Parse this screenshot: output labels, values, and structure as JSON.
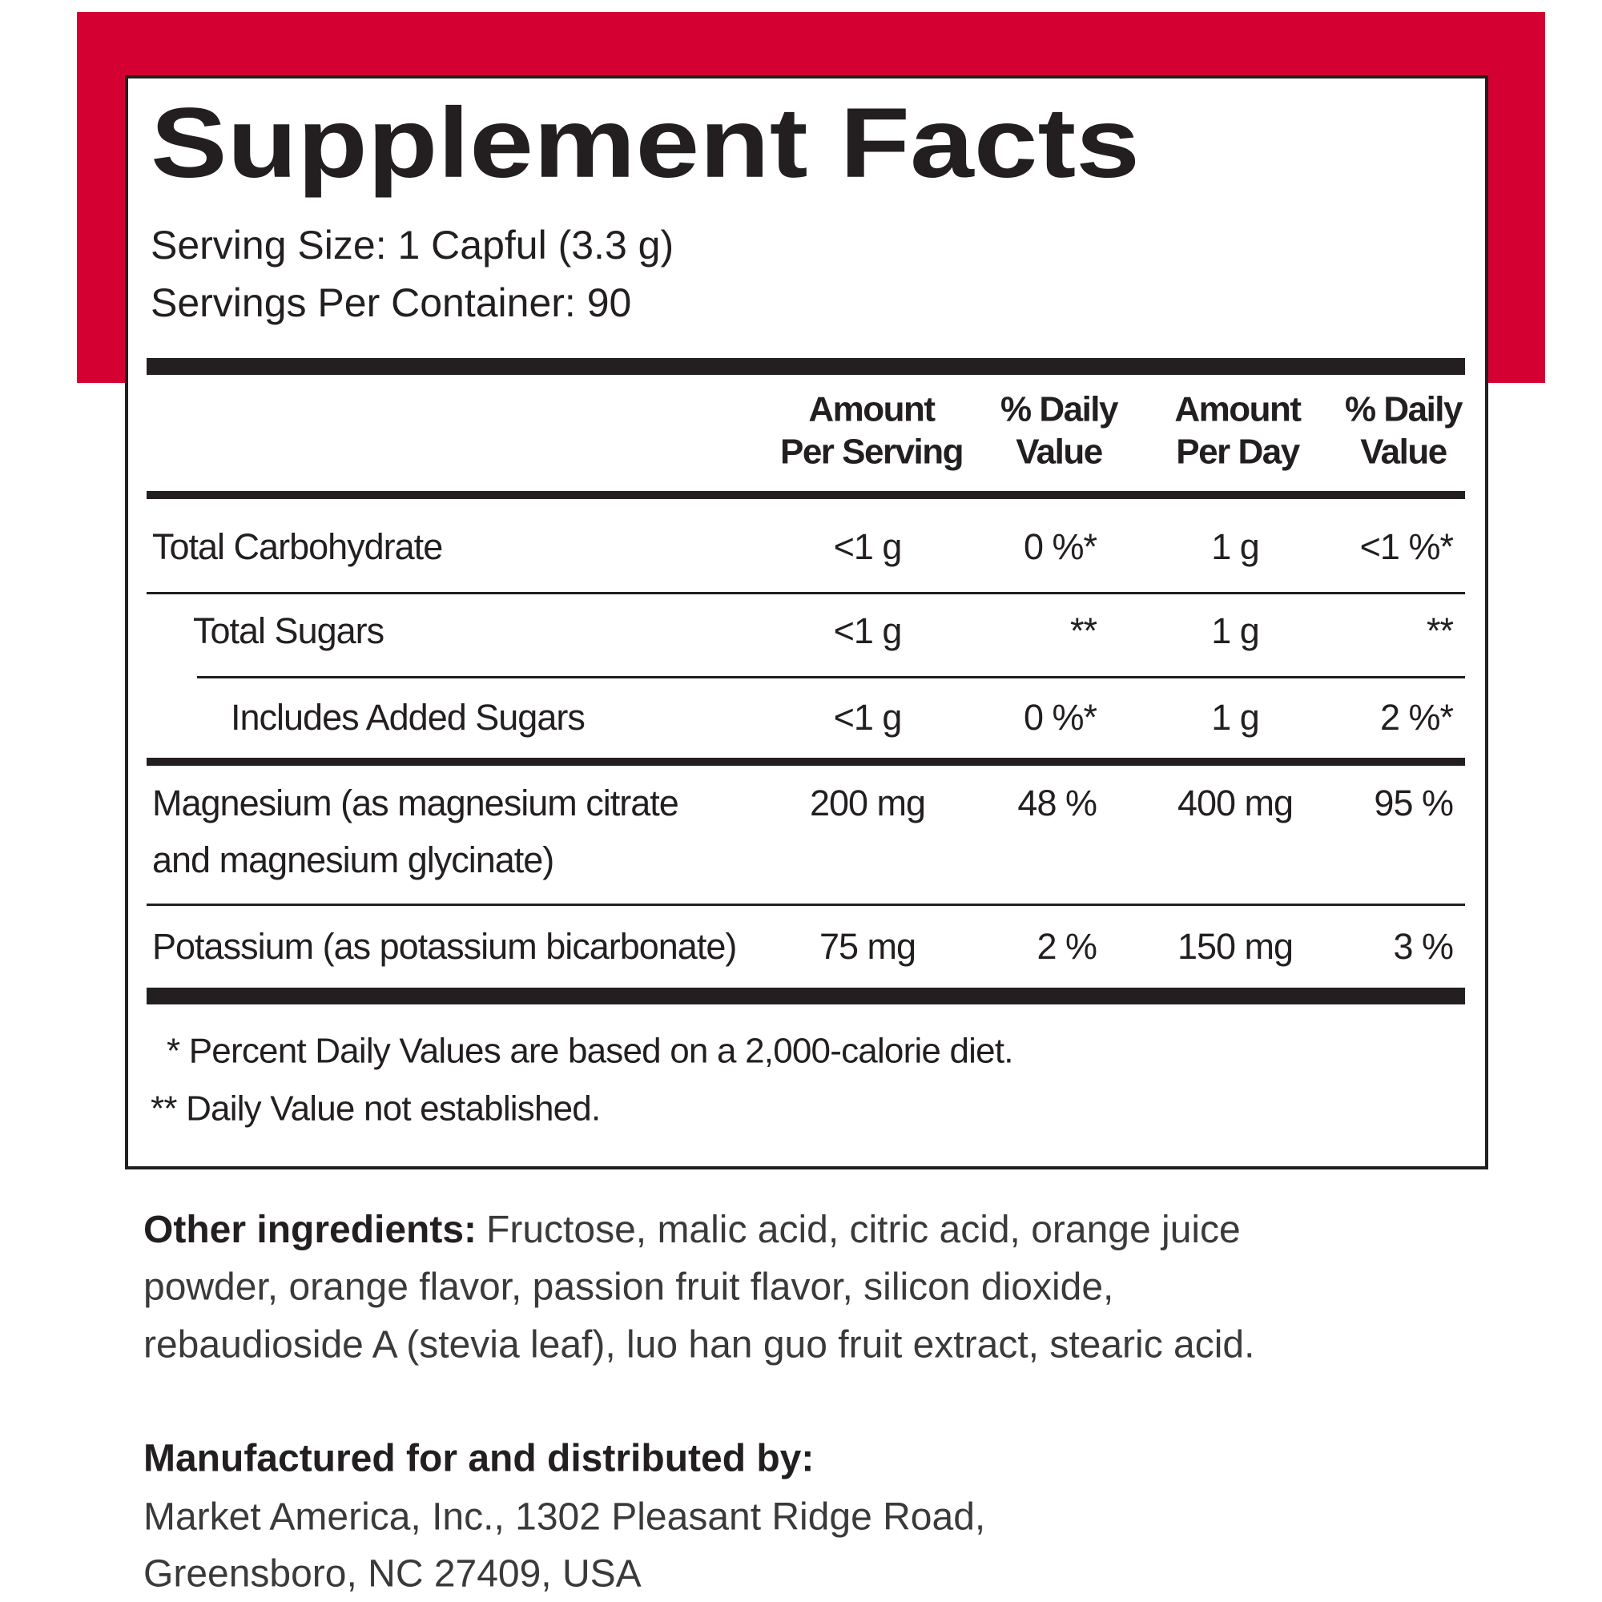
{
  "panel": {
    "title": "Supplement Facts",
    "serving_size": "Serving Size: 1 Capful (3.3 g)",
    "servings_per_container": "Servings Per Container: 90",
    "columns": [
      [
        "Amount",
        "Per Serving"
      ],
      [
        "% Daily",
        "Value"
      ],
      [
        "Amount",
        "Per Day"
      ],
      [
        "% Daily",
        "Value"
      ]
    ],
    "rows": [
      {
        "name": [
          "Total Carbohydrate"
        ],
        "cells": [
          "<1 g",
          "0 %*",
          "1 g",
          "<1 %*"
        ]
      },
      {
        "name": [
          "Total Sugars"
        ],
        "cells": [
          "<1 g",
          "**",
          "1 g",
          "**"
        ]
      },
      {
        "name": [
          "Includes Added Sugars"
        ],
        "cells": [
          "<1 g",
          "0 %*",
          "1 g",
          "2 %*"
        ]
      },
      {
        "name": [
          "Magnesium (as magnesium citrate",
          "and magnesium glycinate)"
        ],
        "cells": [
          "200 mg",
          "48 %",
          "400 mg",
          "95 %"
        ]
      },
      {
        "name": [
          "Potassium (as potassium bicarbonate)"
        ],
        "cells": [
          "75 mg",
          "2 %",
          "150 mg",
          "3 %"
        ]
      }
    ],
    "footnotes": [
      "* Percent Daily Values are based on a 2,000-calorie diet.",
      "** Daily Value not established."
    ]
  },
  "other_ingredients": {
    "label": "Other ingredients:",
    "lines": [
      "Fructose, malic acid, citric acid, orange juice",
      "powder, orange flavor, passion fruit flavor, silicon dioxide,",
      "rebaudioside A (stevia leaf), luo han guo fruit extract, stearic acid."
    ]
  },
  "manufacturer": {
    "label": "Manufactured for and distributed by:",
    "lines": [
      "Market America, Inc., 1302 Pleasant Ridge Road,",
      "Greensboro, NC 27409, USA"
    ]
  }
}
